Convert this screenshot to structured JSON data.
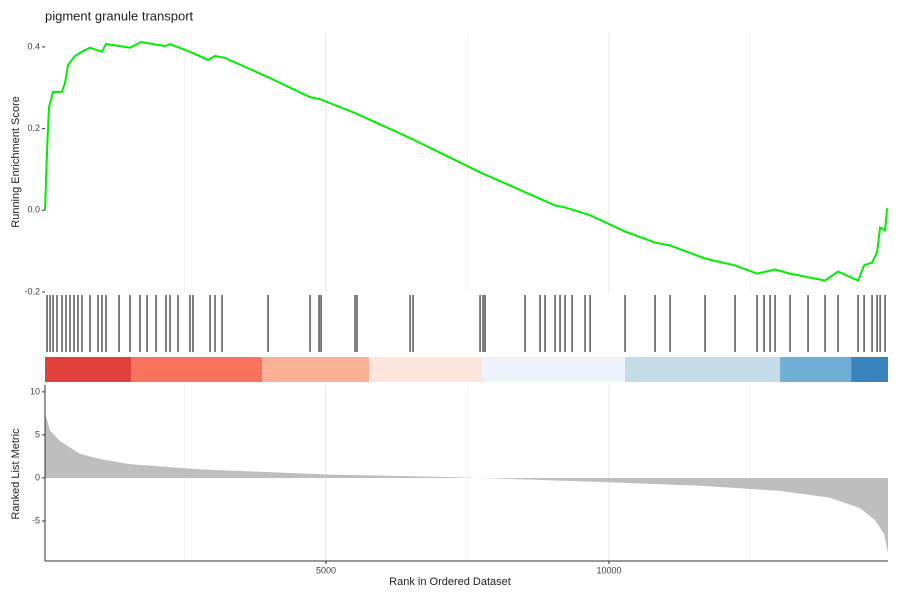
{
  "chart_data": {
    "type": "gsea",
    "title": "pigment granule transport",
    "x_label": "Rank in Ordered Dataset",
    "xlim": [
      35,
      14930
    ],
    "xticks": [
      5000,
      10000
    ],
    "x_minor_grid": [
      2500,
      7500,
      12500
    ],
    "es": {
      "y_label": "Running Enrichment Score",
      "color": "#00ee00",
      "ylim": [
        -0.2,
        0.434
      ],
      "yticks": [
        -0.2,
        {
          "value": 0,
          "label": "0.0"
        },
        0.2,
        0.4
      ],
      "x": [
        35,
        71,
        106,
        177,
        336,
        389,
        442,
        565,
        689,
        830,
        1042,
        1113,
        1537,
        1732,
        2156,
        2244,
        2597,
        2915,
        3039,
        3216,
        3976,
        4718,
        4895,
        5513,
        6485,
        7722,
        9047,
        9224,
        9666,
        10284,
        10814,
        11079,
        11697,
        12227,
        12616,
        12934,
        13199,
        13818,
        14047,
        14401,
        14507,
        14648,
        14737,
        14790,
        14878,
        14914
      ],
      "values": [
        0,
        0.147,
        0.253,
        0.29,
        0.29,
        0.312,
        0.356,
        0.378,
        0.388,
        0.398,
        0.388,
        0.407,
        0.398,
        0.412,
        0.402,
        0.407,
        0.388,
        0.368,
        0.378,
        0.373,
        0.326,
        0.277,
        0.272,
        0.238,
        0.177,
        0.093,
        0.012,
        0.007,
        -0.012,
        -0.052,
        -0.079,
        -0.086,
        -0.118,
        -0.135,
        -0.155,
        -0.145,
        -0.155,
        -0.172,
        -0.15,
        -0.172,
        -0.135,
        -0.128,
        -0.103,
        -0.042,
        -0.049,
        0.005
      ]
    },
    "hits": [
      71,
      124,
      177,
      247,
      336,
      406,
      477,
      548,
      618,
      689,
      830,
      972,
      1042,
      1113,
      1343,
      1537,
      1714,
      1838,
      1997,
      2173,
      2244,
      2385,
      2597,
      2650,
      2951,
      3039,
      3163,
      3976,
      4718,
      4877,
      4912,
      5513,
      5548,
      6485,
      6538,
      7722,
      7775,
      7810,
      8517,
      8782,
      8870,
      9047,
      9135,
      9224,
      9348,
      9577,
      9666,
      10284,
      10814,
      11079,
      11697,
      12227,
      12616,
      12740,
      12846,
      12934,
      13199,
      13517,
      13818,
      14047,
      14401,
      14507,
      14648,
      14737,
      14790,
      14878
    ],
    "bands": {
      "edges": [
        35,
        1555,
        3870,
        5761,
        7757,
        10284,
        13023,
        14278,
        14930
      ],
      "colors": [
        "#e0403a",
        "#f8735d",
        "#fcb095",
        "#fde5dc",
        "#eef3fb",
        "#c4dbe8",
        "#6fafd6",
        "#3a84bd"
      ]
    },
    "metric": {
      "y_label": "Ranked List Metric",
      "color": "#bebebe",
      "ylim": [
        -9.65,
        10.8
      ],
      "yticks": [
        -5,
        0,
        5,
        10
      ],
      "x": [
        35,
        124,
        300,
        654,
        1007,
        1537,
        2774,
        5000,
        7192,
        7722,
        10000,
        11609,
        13023,
        13907,
        14437,
        14701,
        14860,
        14930
      ],
      "values": [
        7.6,
        5.5,
        4.3,
        2.8,
        2.2,
        1.6,
        1.0,
        0.4,
        0.1,
        0,
        -0.5,
        -0.9,
        -1.5,
        -2.3,
        -3.5,
        -4.9,
        -6.5,
        -8.7
      ]
    }
  }
}
